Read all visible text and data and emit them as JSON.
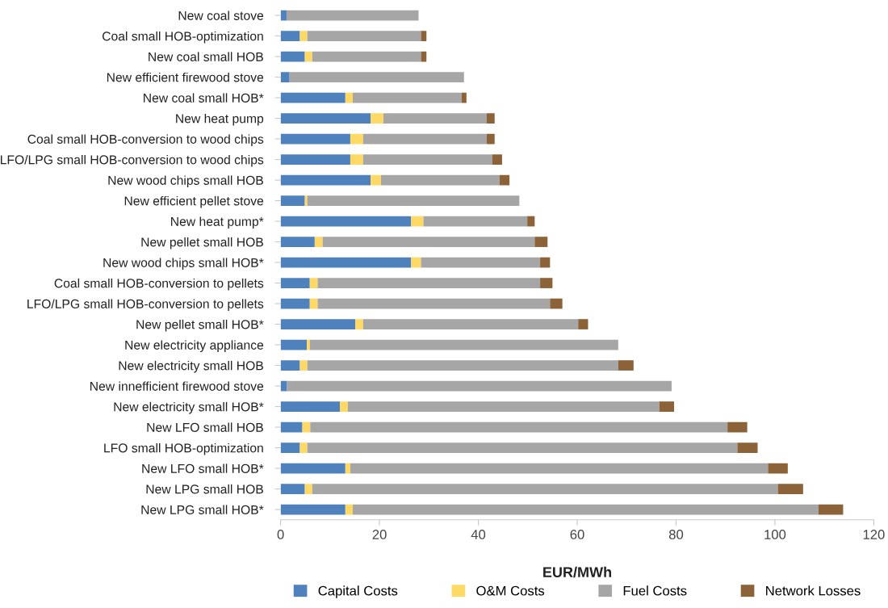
{
  "chart_data": {
    "type": "bar",
    "orientation": "horizontal",
    "stacked": true,
    "xlabel": "EUR/MWh",
    "categories": [
      "New coal stove",
      "Coal small HOB-optimization",
      "New coal small HOB",
      "New efficient firewood stove",
      "New coal small HOB*",
      "New heat pump",
      "Coal small HOB-conversion to wood chips",
      "LFO/LPG small HOB-conversion to wood chips",
      "New wood chips small HOB",
      "New efficient pellet stove",
      "New heat pump*",
      "New pellet small HOB",
      "New wood chips small HOB*",
      "Coal small HOB-conversion to pellets",
      "LFO/LPG small HOB-conversion to pellets",
      "New pellet small HOB*",
      "New electricity appliance",
      "New electricity small HOB",
      "New innefficient firewood stove",
      "New electricity small HOB*",
      "New LFO small HOB",
      "LFO small HOB-optimization",
      "New LFO small HOB*",
      "New LPG small HOB",
      "New LPG small HOB*"
    ],
    "series": [
      {
        "name": "Capital Costs",
        "color": "#4f81bd",
        "values": [
          1.2,
          3.9,
          4.9,
          1.8,
          13.1,
          18.2,
          14.1,
          14.1,
          18.2,
          4.9,
          26.4,
          6.9,
          26.4,
          5.9,
          5.9,
          15.1,
          5.3,
          3.9,
          1.3,
          12.0,
          4.4,
          3.9,
          13.1,
          4.9,
          13.1
        ]
      },
      {
        "name": "O&M Costs",
        "color": "#ffd966",
        "values": [
          null,
          1.5,
          1.5,
          null,
          1.5,
          2.6,
          2.6,
          2.6,
          2.1,
          0.5,
          2.5,
          1.6,
          2.0,
          1.6,
          1.6,
          1.6,
          0.6,
          1.5,
          null,
          1.6,
          1.6,
          1.5,
          1.0,
          1.5,
          1.5
        ]
      },
      {
        "name": "Fuel Costs",
        "color": "#a6a6a6",
        "values": [
          26.7,
          23.0,
          22.0,
          35.3,
          22.0,
          20.9,
          25.0,
          26.1,
          24.0,
          42.9,
          21.0,
          42.9,
          24.1,
          45.0,
          47.0,
          43.5,
          62.4,
          62.9,
          77.8,
          63.0,
          84.4,
          87.0,
          84.5,
          94.2,
          94.2
        ]
      },
      {
        "name": "Network Losses",
        "color": "#8c6239",
        "values": [
          null,
          1.1,
          1.1,
          null,
          1.0,
          1.6,
          1.6,
          2.0,
          2.0,
          null,
          1.5,
          2.6,
          2.0,
          2.5,
          2.5,
          2.0,
          null,
          3.1,
          null,
          3.0,
          4.0,
          4.1,
          4.0,
          5.1,
          5.0
        ]
      }
    ],
    "xlim": [
      0,
      120
    ],
    "xticks": [
      0,
      20,
      40,
      60,
      80,
      100,
      120
    ],
    "grid": false,
    "legend": "bottom"
  }
}
